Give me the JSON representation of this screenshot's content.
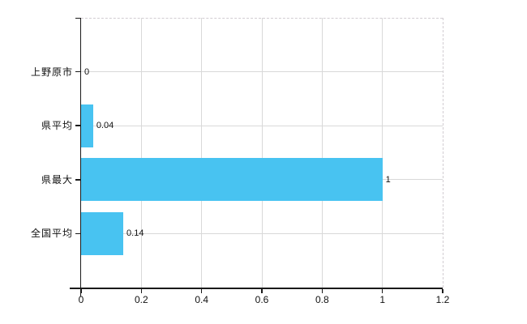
{
  "chart_data": {
    "type": "bar",
    "orientation": "horizontal",
    "title": "",
    "categories": [
      "上野原市",
      "県平均",
      "県最大",
      "全国平均"
    ],
    "values": [
      0,
      0.04,
      1,
      0.14
    ],
    "value_labels": [
      "0",
      "0.04",
      "1",
      "0.14"
    ],
    "xlim": [
      0,
      1.2
    ],
    "x_ticks": [
      0,
      0.2,
      0.4,
      0.6,
      0.8,
      1,
      1.2
    ],
    "x_tick_labels": [
      "0",
      "0.2",
      "0.4",
      "0.6",
      "0.8",
      "1",
      "1.2"
    ],
    "grid": true,
    "legend": false,
    "colors": {
      "bar": "#48c3f1",
      "gridline": "#d9d9d9",
      "plot_border_dashed": "#d2cdd2",
      "axis": "#1a1a1a",
      "text": "#111111",
      "background": "#ffffff"
    }
  }
}
